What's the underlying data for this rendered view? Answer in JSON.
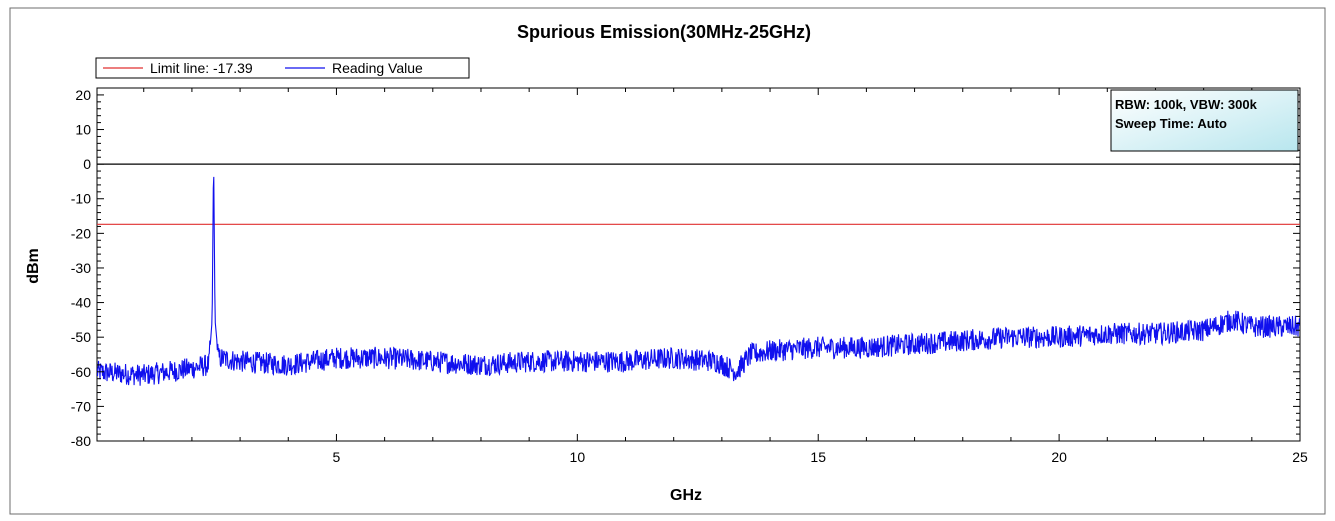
{
  "chart_data": {
    "type": "line",
    "title": "Spurious Emission(30MHz-25GHz)",
    "xlabel": "GHz",
    "ylabel": "dBm",
    "xlim": [
      0.03,
      25
    ],
    "ylim": [
      -80,
      22
    ],
    "xticks": [
      5,
      10,
      15,
      20,
      25
    ],
    "yticks": [
      20,
      10,
      0,
      -10,
      -20,
      -30,
      -40,
      -50,
      -60,
      -70,
      -80
    ],
    "grid": false,
    "legend_position": "top-left",
    "legend": {
      "limit_label": "Limit line: -17.39",
      "reading_label": "Reading Value"
    },
    "annotation": {
      "line1": "RBW: 100k, VBW: 300k",
      "line2": "Sweep Time: Auto"
    },
    "reference_line": {
      "y": 0,
      "color": "#000000"
    },
    "series": [
      {
        "name": "Limit line",
        "color": "#e03030",
        "x": [
          0.03,
          25
        ],
        "y": [
          -17.39,
          -17.39
        ]
      },
      {
        "name": "Reading Value",
        "color": "#1010ee",
        "x": [
          0.03,
          1,
          2,
          2.35,
          2.42,
          2.45,
          2.48,
          2.55,
          3,
          4,
          5,
          6,
          7,
          8,
          9,
          10,
          11,
          12,
          12.9,
          13.3,
          13.6,
          14,
          15,
          16,
          17,
          18,
          19,
          20,
          21,
          22,
          23,
          23.6,
          24,
          25
        ],
        "y": [
          -60,
          -61,
          -59,
          -58,
          -45,
          3,
          -45,
          -56,
          -57,
          -58,
          -56,
          -56,
          -57,
          -58,
          -57,
          -57,
          -57,
          -56,
          -57,
          -60,
          -55,
          -54,
          -53,
          -53,
          -52,
          -51,
          -50,
          -50,
          -49,
          -49,
          -48,
          -45,
          -47,
          -47
        ]
      }
    ]
  }
}
